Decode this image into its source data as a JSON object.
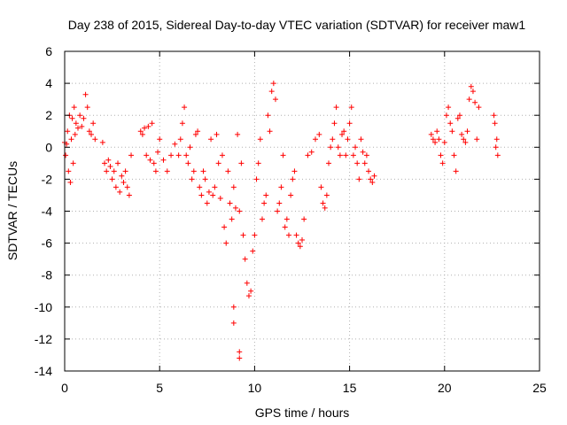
{
  "chart_data": {
    "type": "scatter",
    "title": "Day 238 of 2015, Sidereal Day-to-day VTEC variation (SDTVAR) for receiver maw1",
    "xlabel": "GPS time / hours",
    "ylabel": "SDTVAR / TECUs",
    "xlim": [
      0,
      25
    ],
    "ylim": [
      -14,
      6
    ],
    "xticks": [
      0,
      5,
      10,
      15,
      20,
      25
    ],
    "yticks": [
      -14,
      -12,
      -10,
      -8,
      -6,
      -4,
      -2,
      0,
      2,
      4,
      6
    ],
    "xtick_labels": [
      "0",
      "5",
      "10",
      "15",
      "20",
      "25"
    ],
    "ytick_labels": [
      "-14",
      "-12",
      "-10",
      "-8",
      "-6",
      "-4",
      "-2",
      "0",
      "2",
      "4",
      "6"
    ],
    "grid": true,
    "marker": "+",
    "color": "#ff0000",
    "series": [
      {
        "name": "SDTVAR",
        "points": [
          [
            0.0,
            0.3
          ],
          [
            0.05,
            -0.5
          ],
          [
            0.1,
            0.2
          ],
          [
            0.15,
            1.0
          ],
          [
            0.2,
            -1.5
          ],
          [
            0.25,
            2.0
          ],
          [
            0.3,
            -2.2
          ],
          [
            0.35,
            0.5
          ],
          [
            0.4,
            1.8
          ],
          [
            0.45,
            -1.0
          ],
          [
            0.5,
            2.5
          ],
          [
            0.55,
            0.8
          ],
          [
            0.6,
            1.5
          ],
          [
            0.7,
            1.2
          ],
          [
            0.8,
            2.0
          ],
          [
            0.9,
            1.3
          ],
          [
            1.0,
            1.8
          ],
          [
            1.1,
            3.3
          ],
          [
            1.2,
            2.5
          ],
          [
            1.3,
            1.0
          ],
          [
            1.4,
            0.8
          ],
          [
            1.5,
            1.5
          ],
          [
            1.6,
            0.5
          ],
          [
            2.0,
            0.3
          ],
          [
            2.1,
            -1.0
          ],
          [
            2.2,
            -1.5
          ],
          [
            2.3,
            -0.8
          ],
          [
            2.4,
            -1.2
          ],
          [
            2.5,
            -2.0
          ],
          [
            2.6,
            -1.5
          ],
          [
            2.7,
            -2.5
          ],
          [
            2.8,
            -1.0
          ],
          [
            2.9,
            -2.8
          ],
          [
            3.0,
            -1.8
          ],
          [
            3.1,
            -2.2
          ],
          [
            3.2,
            -1.5
          ],
          [
            3.3,
            -2.5
          ],
          [
            3.4,
            -3.0
          ],
          [
            3.5,
            -0.5
          ],
          [
            4.0,
            1.0
          ],
          [
            4.1,
            0.8
          ],
          [
            4.2,
            1.2
          ],
          [
            4.3,
            -0.5
          ],
          [
            4.4,
            1.3
          ],
          [
            4.5,
            -0.8
          ],
          [
            4.6,
            1.5
          ],
          [
            4.7,
            -1.0
          ],
          [
            4.8,
            -1.5
          ],
          [
            4.9,
            -0.3
          ],
          [
            5.0,
            0.5
          ],
          [
            5.2,
            -0.8
          ],
          [
            5.4,
            -1.5
          ],
          [
            5.6,
            -0.5
          ],
          [
            5.8,
            0.2
          ],
          [
            6.0,
            -0.5
          ],
          [
            6.1,
            0.5
          ],
          [
            6.2,
            1.5
          ],
          [
            6.3,
            2.5
          ],
          [
            6.4,
            -0.5
          ],
          [
            6.5,
            -1.0
          ],
          [
            6.6,
            0.0
          ],
          [
            6.7,
            -2.0
          ],
          [
            6.8,
            -1.5
          ],
          [
            6.9,
            0.8
          ],
          [
            7.0,
            1.0
          ],
          [
            7.1,
            -2.5
          ],
          [
            7.2,
            -3.0
          ],
          [
            7.3,
            -1.5
          ],
          [
            7.4,
            -2.0
          ],
          [
            7.5,
            -3.5
          ],
          [
            7.6,
            -2.8
          ],
          [
            7.7,
            0.5
          ],
          [
            7.8,
            -3.0
          ],
          [
            7.9,
            -2.5
          ],
          [
            8.0,
            0.8
          ],
          [
            8.1,
            -1.0
          ],
          [
            8.2,
            -3.2
          ],
          [
            8.3,
            -0.5
          ],
          [
            8.4,
            -5.0
          ],
          [
            8.5,
            -6.0
          ],
          [
            8.6,
            -1.5
          ],
          [
            8.7,
            -3.5
          ],
          [
            8.8,
            -4.5
          ],
          [
            8.9,
            -2.5
          ],
          [
            9.0,
            -3.8
          ],
          [
            9.1,
            0.8
          ],
          [
            9.2,
            -4.0
          ],
          [
            9.3,
            -1.0
          ],
          [
            9.4,
            -5.5
          ],
          [
            8.9,
            -10.0
          ],
          [
            8.9,
            -11.0
          ],
          [
            9.2,
            -12.8
          ],
          [
            9.2,
            -13.2
          ],
          [
            9.5,
            -7.0
          ],
          [
            9.6,
            -8.5
          ],
          [
            9.7,
            -9.3
          ],
          [
            9.8,
            -9.0
          ],
          [
            9.9,
            -6.5
          ],
          [
            10.0,
            -5.5
          ],
          [
            10.1,
            -2.0
          ],
          [
            10.2,
            -1.0
          ],
          [
            10.3,
            0.5
          ],
          [
            10.4,
            -4.5
          ],
          [
            10.5,
            -3.5
          ],
          [
            10.6,
            -3.0
          ],
          [
            10.7,
            2.0
          ],
          [
            10.8,
            1.0
          ],
          [
            10.9,
            3.5
          ],
          [
            11.0,
            4.0
          ],
          [
            11.1,
            3.0
          ],
          [
            11.2,
            -4.0
          ],
          [
            11.3,
            -3.5
          ],
          [
            11.4,
            -2.5
          ],
          [
            11.5,
            -0.5
          ],
          [
            11.6,
            -5.0
          ],
          [
            11.7,
            -4.5
          ],
          [
            11.8,
            -5.5
          ],
          [
            11.9,
            -3.0
          ],
          [
            12.0,
            -2.0
          ],
          [
            12.1,
            -1.5
          ],
          [
            12.2,
            -5.5
          ],
          [
            12.3,
            -6.0
          ],
          [
            12.4,
            -6.2
          ],
          [
            12.5,
            -5.8
          ],
          [
            12.6,
            -4.5
          ],
          [
            12.8,
            -0.5
          ],
          [
            13.0,
            -0.3
          ],
          [
            13.2,
            0.5
          ],
          [
            13.4,
            0.8
          ],
          [
            13.5,
            -2.5
          ],
          [
            13.6,
            -3.5
          ],
          [
            13.7,
            -3.8
          ],
          [
            13.8,
            -3.0
          ],
          [
            13.9,
            -1.0
          ],
          [
            14.0,
            0.0
          ],
          [
            14.1,
            0.5
          ],
          [
            14.2,
            1.5
          ],
          [
            14.3,
            2.5
          ],
          [
            14.4,
            0.0
          ],
          [
            14.5,
            -0.5
          ],
          [
            14.6,
            0.8
          ],
          [
            14.7,
            1.0
          ],
          [
            14.8,
            -0.5
          ],
          [
            14.9,
            0.5
          ],
          [
            15.0,
            1.5
          ],
          [
            15.1,
            2.5
          ],
          [
            15.2,
            -0.5
          ],
          [
            15.3,
            0.0
          ],
          [
            15.4,
            -1.0
          ],
          [
            15.5,
            -2.0
          ],
          [
            15.6,
            0.5
          ],
          [
            15.7,
            -0.3
          ],
          [
            15.8,
            -1.0
          ],
          [
            15.9,
            -0.5
          ],
          [
            16.0,
            -1.5
          ],
          [
            16.1,
            -2.0
          ],
          [
            16.2,
            -2.2
          ],
          [
            16.3,
            -1.8
          ],
          [
            19.3,
            0.8
          ],
          [
            19.4,
            0.5
          ],
          [
            19.5,
            0.3
          ],
          [
            19.6,
            1.0
          ],
          [
            19.7,
            0.5
          ],
          [
            19.8,
            -0.5
          ],
          [
            19.9,
            -1.0
          ],
          [
            20.0,
            0.3
          ],
          [
            20.1,
            2.0
          ],
          [
            20.2,
            2.5
          ],
          [
            20.3,
            1.5
          ],
          [
            20.4,
            1.0
          ],
          [
            20.5,
            -0.5
          ],
          [
            20.6,
            -1.5
          ],
          [
            20.7,
            1.8
          ],
          [
            20.8,
            2.0
          ],
          [
            20.9,
            0.8
          ],
          [
            21.0,
            0.5
          ],
          [
            21.1,
            0.3
          ],
          [
            21.2,
            1.0
          ],
          [
            21.3,
            3.0
          ],
          [
            21.4,
            3.8
          ],
          [
            21.5,
            3.5
          ],
          [
            21.6,
            2.8
          ],
          [
            21.7,
            0.5
          ],
          [
            21.8,
            2.5
          ],
          [
            22.6,
            2.0
          ],
          [
            22.65,
            1.5
          ],
          [
            22.7,
            0.0
          ],
          [
            22.75,
            0.5
          ],
          [
            22.8,
            -0.5
          ]
        ]
      }
    ]
  }
}
